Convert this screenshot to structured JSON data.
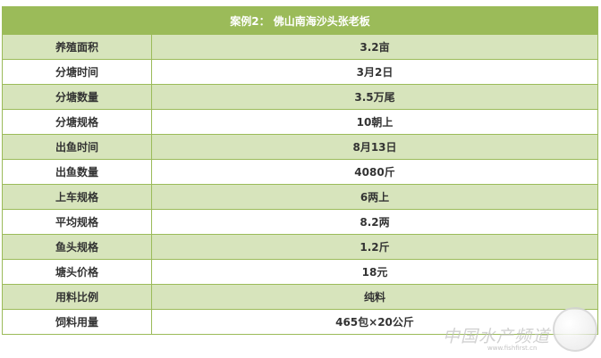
{
  "title": "案例2： 佛山南海沙头张老板",
  "rows": [
    {
      "label": "养殖面积",
      "value": "3.2亩"
    },
    {
      "label": "分塘时间",
      "value": "3月2日"
    },
    {
      "label": "分塘数量",
      "value": "3.5万尾"
    },
    {
      "label": "分塘规格",
      "value": "10朝上"
    },
    {
      "label": "出鱼时间",
      "value": "8月13日"
    },
    {
      "label": "出鱼数量",
      "value": "4080斤"
    },
    {
      "label": "上车规格",
      "value": "6两上"
    },
    {
      "label": "平均规格",
      "value": "8.2两"
    },
    {
      "label": "鱼头规格",
      "value": "1.2斤"
    },
    {
      "label": "塘头价格",
      "value": "18元"
    },
    {
      "label": "用料比例",
      "value": "纯料"
    },
    {
      "label": "饲料用量",
      "value": "465包×20公斤"
    }
  ],
  "watermark": {
    "text": "中国水产频道",
    "url": "www.fishfirst.cn"
  },
  "colors": {
    "header": "#9bbb59",
    "alt_row": "#d7e4bc"
  }
}
